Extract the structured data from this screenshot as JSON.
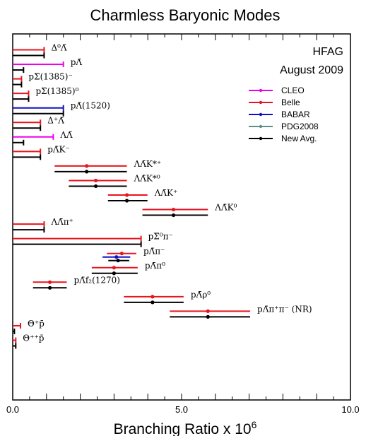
{
  "chart_data": {
    "type": "scatter",
    "title": "Charmless Baryonic Modes",
    "xlabel_main": "Branching Ratio x 10",
    "xlabel_exp": "6",
    "xlim": [
      0,
      10
    ],
    "x_ticks": [
      {
        "value": 0,
        "label": "0.0"
      },
      {
        "value": 5,
        "label": "5.0"
      },
      {
        "value": 10,
        "label": "10.0"
      }
    ],
    "annotation": [
      "HFAG",
      "August 2009"
    ],
    "legend_placement": "right",
    "legend": [
      {
        "name": "CLEO",
        "color": "#ee00ee"
      },
      {
        "name": "Belle",
        "color": "#e8141e"
      },
      {
        "name": "BABAR",
        "color": "#1010c8"
      },
      {
        "name": "PDG2008",
        "color": "#5f8f8a"
      },
      {
        "name": "New Avg.",
        "color": "#000000"
      }
    ],
    "colors": {
      "CLEO": "#ee00ee",
      "Belle": "#e8141e",
      "BABAR": "#1010c8",
      "PDG2008": "#5f8f8a",
      "New Avg.": "#000000"
    },
    "modes": [
      {
        "label": "Δ⁰Λ̄",
        "measurements": [
          {
            "exp": "Belle",
            "limit": 0.93
          },
          {
            "exp": "New Avg.",
            "limit": 0.93
          }
        ]
      },
      {
        "label": "pΛ̄",
        "measurements": [
          {
            "exp": "CLEO",
            "limit": 1.5
          },
          {
            "exp": "New Avg.",
            "limit": 0.32
          }
        ]
      },
      {
        "label": "pΣ̄(1385)⁻",
        "measurements": [
          {
            "exp": "Belle",
            "limit": 0.26
          },
          {
            "exp": "New Avg.",
            "limit": 0.26
          }
        ]
      },
      {
        "label": "pΣ̄(1385)⁰",
        "measurements": [
          {
            "exp": "Belle",
            "limit": 0.47
          },
          {
            "exp": "New Avg.",
            "limit": 0.47
          }
        ]
      },
      {
        "label": "pΛ̄(1520)",
        "measurements": [
          {
            "exp": "BABAR",
            "limit": 1.5
          },
          {
            "exp": "New Avg.",
            "limit": 1.5
          }
        ]
      },
      {
        "label": "Δ⁺Λ̄",
        "measurements": [
          {
            "exp": "Belle",
            "limit": 0.82
          },
          {
            "exp": "New Avg.",
            "limit": 0.82
          }
        ]
      },
      {
        "label": "ΛΛ̄",
        "measurements": [
          {
            "exp": "CLEO",
            "limit": 1.2
          },
          {
            "exp": "New Avg.",
            "limit": 0.32
          }
        ]
      },
      {
        "label": "pΛ̄K⁻",
        "measurements": [
          {
            "exp": "Belle",
            "limit": 0.82
          },
          {
            "exp": "New Avg.",
            "limit": 0.82
          }
        ]
      },
      {
        "label": "ΛΛ̄K*⁺",
        "measurements": [
          {
            "exp": "Belle",
            "value": 2.19,
            "low": 1.24,
            "high": 3.38
          },
          {
            "exp": "New Avg.",
            "value": 2.19,
            "low": 1.24,
            "high": 3.38
          }
        ]
      },
      {
        "label": "ΛΛ̄K*⁰",
        "measurements": [
          {
            "exp": "Belle",
            "value": 2.46,
            "low": 1.66,
            "high": 3.38
          },
          {
            "exp": "New Avg.",
            "value": 2.46,
            "low": 1.66,
            "high": 3.38
          }
        ]
      },
      {
        "label": "ΛΛ̄K⁺",
        "measurements": [
          {
            "exp": "Belle",
            "value": 3.38,
            "low": 2.82,
            "high": 3.99
          },
          {
            "exp": "New Avg.",
            "value": 3.38,
            "low": 2.82,
            "high": 3.99
          }
        ]
      },
      {
        "label": "ΛΛ̄K⁰",
        "measurements": [
          {
            "exp": "Belle",
            "value": 4.76,
            "low": 3.84,
            "high": 5.78
          },
          {
            "exp": "New Avg.",
            "value": 4.76,
            "low": 3.84,
            "high": 5.78
          }
        ]
      },
      {
        "label": "ΛΛ̄π⁺",
        "measurements": [
          {
            "exp": "Belle",
            "limit": 0.93
          },
          {
            "exp": "New Avg.",
            "limit": 0.93
          }
        ]
      },
      {
        "label": "pΣ̄⁰π⁻",
        "measurements": [
          {
            "exp": "Belle",
            "limit": 3.8
          },
          {
            "exp": "New Avg.",
            "limit": 3.8
          }
        ]
      },
      {
        "label": "pΛ̄π⁻",
        "measurements": [
          {
            "exp": "Belle",
            "value": 3.23,
            "low": 2.79,
            "high": 3.66
          },
          {
            "exp": "BABAR",
            "value": 3.07,
            "low": 2.66,
            "high": 3.48
          },
          {
            "exp": "New Avg.",
            "value": 3.12,
            "low": 2.83,
            "high": 3.45
          }
        ]
      },
      {
        "label": "pΛ̄π⁰",
        "measurements": [
          {
            "exp": "Belle",
            "value": 3.0,
            "low": 2.34,
            "high": 3.7
          },
          {
            "exp": "New Avg.",
            "value": 3.0,
            "low": 2.34,
            "high": 3.7
          }
        ]
      },
      {
        "label": "pΛ̄f₂(1270)",
        "measurements": [
          {
            "exp": "Belle",
            "value": 1.1,
            "low": 0.6,
            "high": 1.6
          },
          {
            "exp": "New Avg.",
            "value": 1.1,
            "low": 0.6,
            "high": 1.6
          }
        ]
      },
      {
        "label": "pΛ̄ρ⁰",
        "measurements": [
          {
            "exp": "Belle",
            "value": 4.14,
            "low": 3.29,
            "high": 5.06
          },
          {
            "exp": "New Avg.",
            "value": 4.14,
            "low": 3.29,
            "high": 5.06
          }
        ]
      },
      {
        "label": "pΛ̄π⁺π⁻ (NR)",
        "measurements": [
          {
            "exp": "Belle",
            "value": 5.78,
            "low": 4.65,
            "high": 7.03
          },
          {
            "exp": "New Avg.",
            "value": 5.78,
            "low": 4.65,
            "high": 7.03
          }
        ]
      },
      {
        "label": "Θ⁺p̄",
        "measurements": [
          {
            "exp": "Belle",
            "limit": 0.23
          },
          {
            "exp": "New Avg.",
            "limit": 0.05
          }
        ]
      },
      {
        "label": "Θ⁺⁺p̄",
        "measurements": [
          {
            "exp": "Belle",
            "limit": 0.09
          },
          {
            "exp": "New Avg.",
            "limit": 0.09
          }
        ]
      }
    ]
  }
}
